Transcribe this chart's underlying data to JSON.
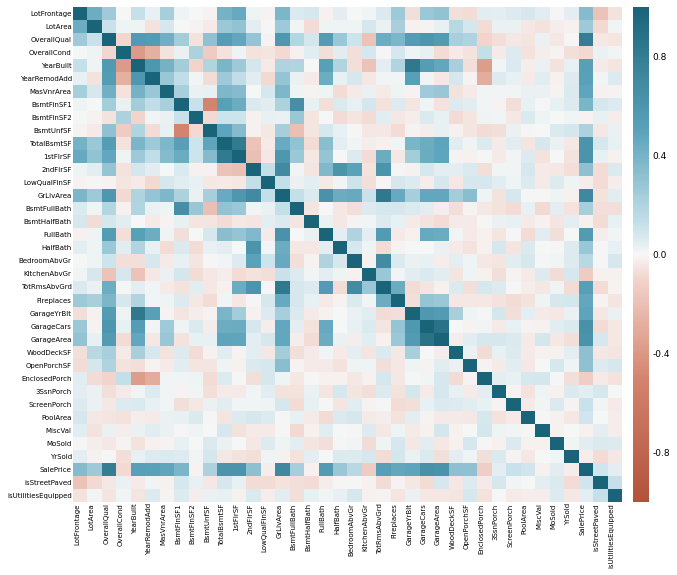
{
  "labels": [
    "LotFrontage",
    "LotArea",
    "OverallQual",
    "OverallCond",
    "YearBuilt",
    "YearRemodAdd",
    "MasVnrArea",
    "BsmtFinSF1",
    "BsmtFinSF2",
    "BsmtUnfSF",
    "TotalBsmtSF",
    "1stFlrSF",
    "2ndFlrSF",
    "LowQualFinSF",
    "GrLivArea",
    "BsmtFullBath",
    "BsmtHalfBath",
    "FullBath",
    "HalfBath",
    "BedroomAbvGr",
    "KitchenAbvGr",
    "TotRmsAbvGrd",
    "Fireplaces",
    "GarageYrBlt",
    "GarageCars",
    "GarageArea",
    "WoodDeckSF",
    "OpenPorchSF",
    "EnclosedPorch",
    "3SsnPorch",
    "ScreenPorch",
    "PoolArea",
    "MiscVal",
    "MoSold",
    "YrSold",
    "SalePrice",
    "isStreetPaved",
    "isUtilitiesEquipped"
  ],
  "vmin": -1.0,
  "vmax": 1.0,
  "figsize": [
    6.77,
    5.75
  ],
  "dpi": 100,
  "colorbar_ticks": [
    0.8,
    0.4,
    0.0,
    -0.4,
    -0.8
  ],
  "colorbar_tick_labels": [
    "0.8",
    "0.4",
    "0.0",
    "-0.4",
    "-0.8"
  ],
  "cmap_positive": "#1a6b8a",
  "cmap_zero": "#f7f7f7",
  "cmap_negative": "#c1614a"
}
